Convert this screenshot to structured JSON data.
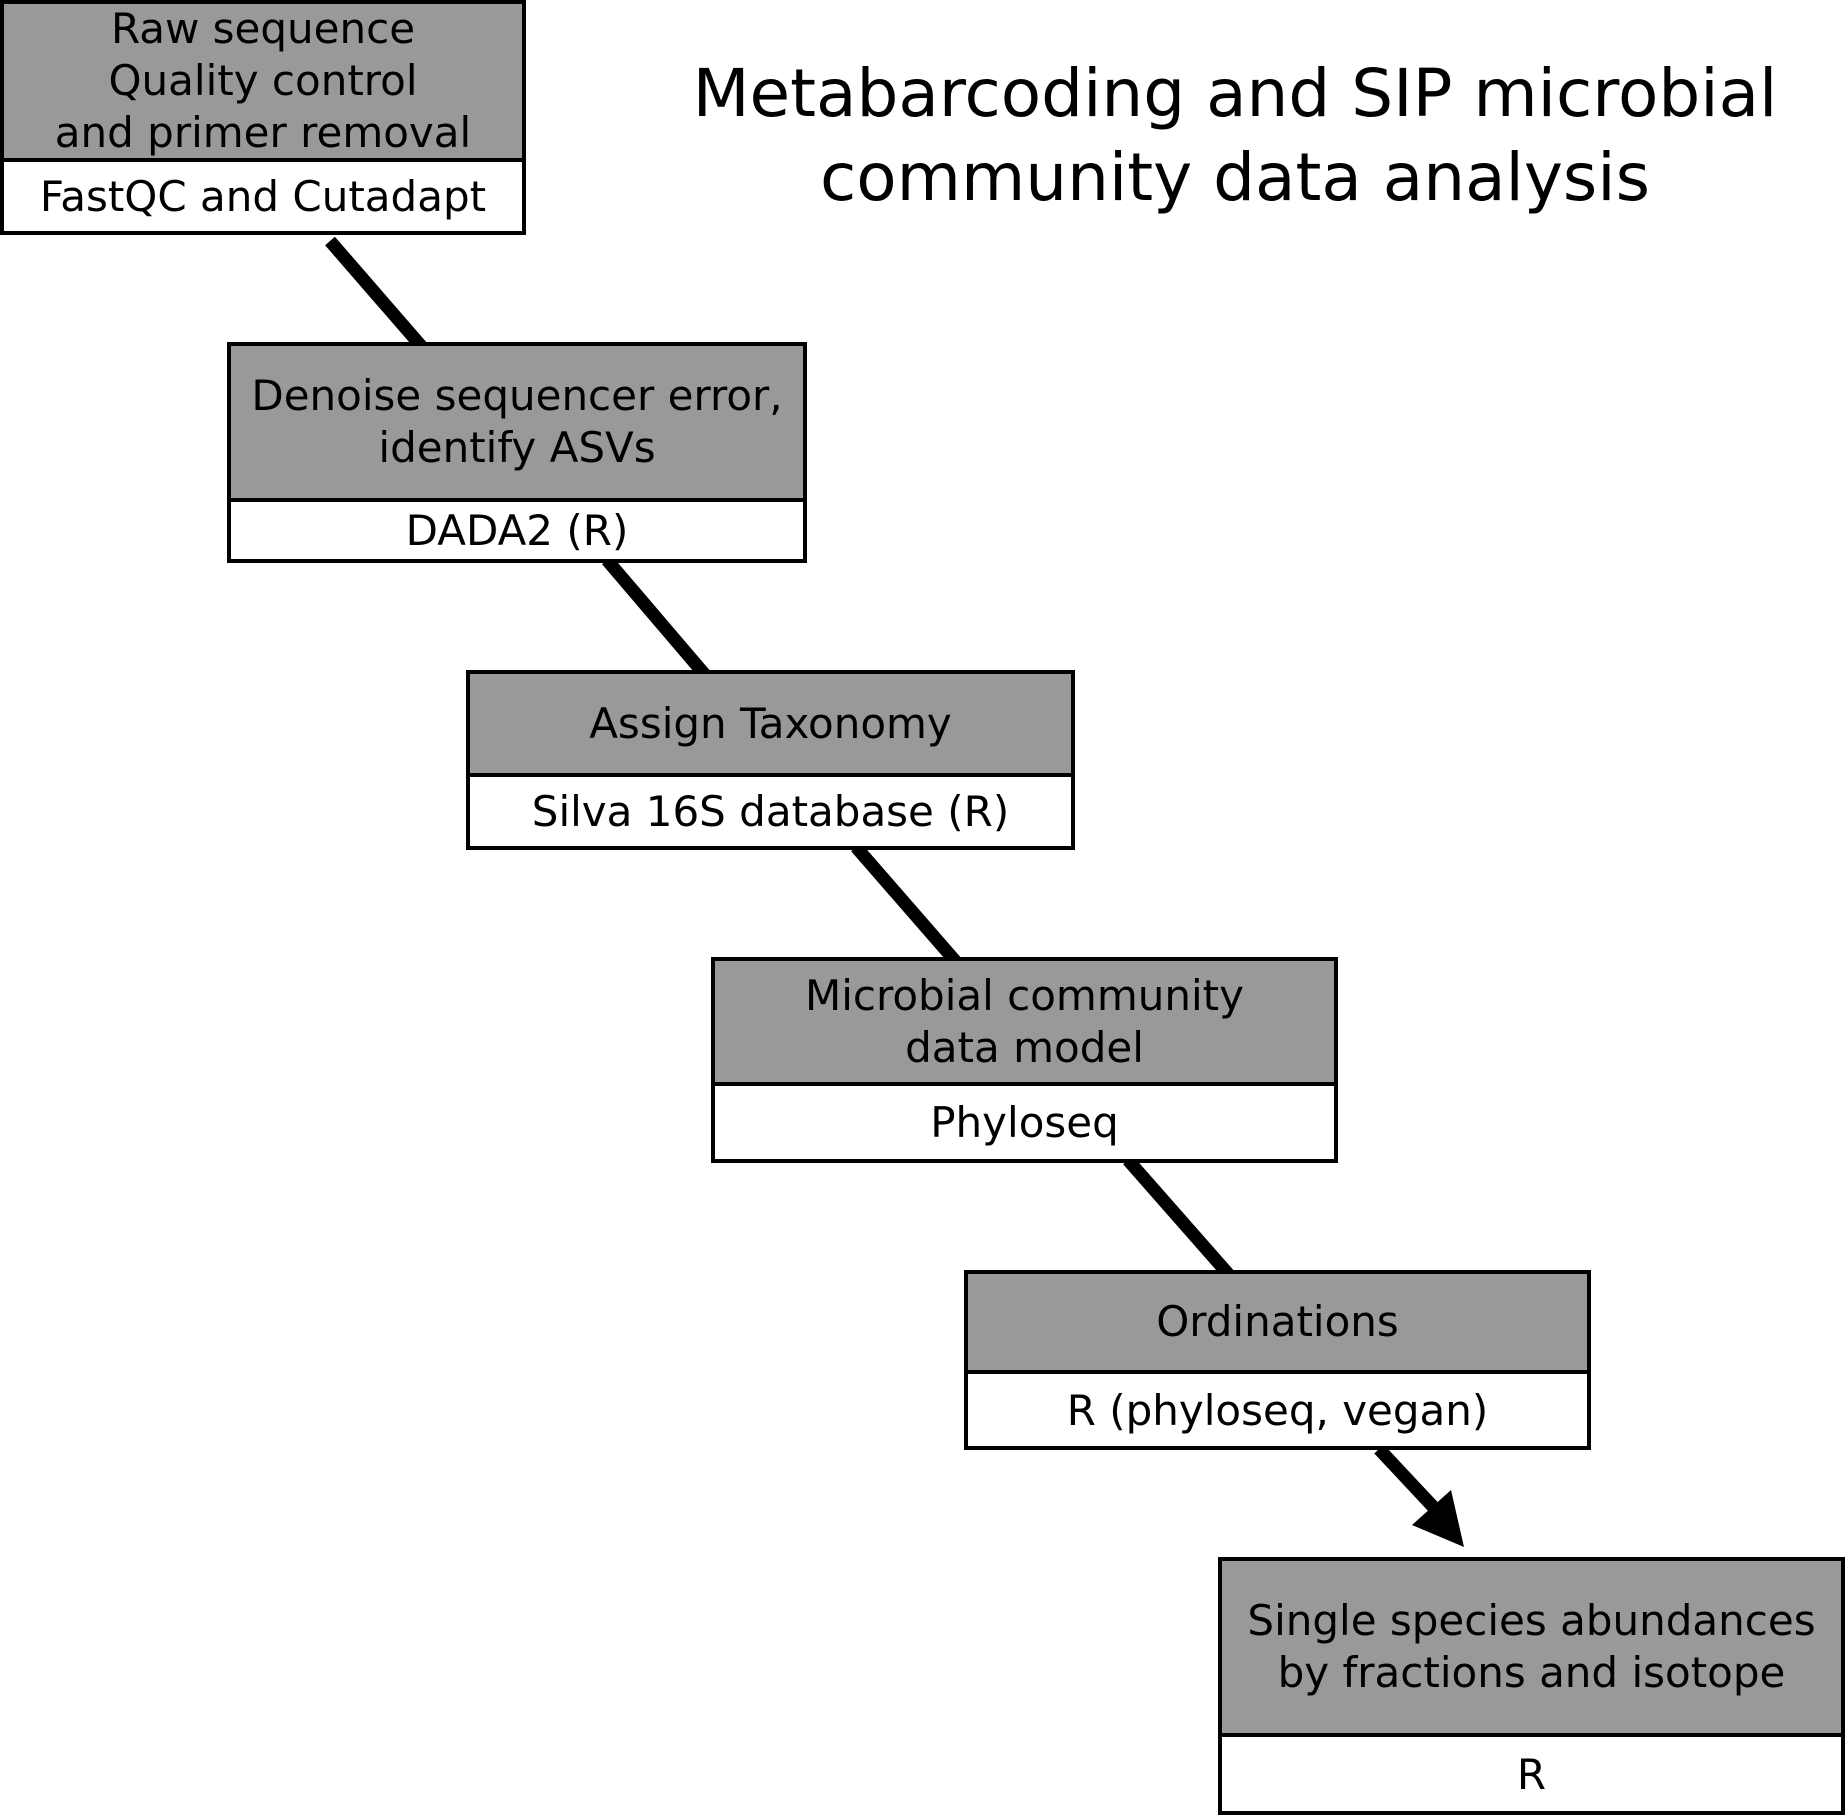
{
  "title": {
    "line1": "Metabarcoding and SIP microbial",
    "line2": "community data analysis"
  },
  "steps": [
    {
      "process": [
        "Raw sequence",
        "Quality control",
        "and primer removal"
      ],
      "tool": "FastQC and Cutadapt"
    },
    {
      "process": [
        "Denoise sequencer error,",
        "identify ASVs"
      ],
      "tool": "DADA2 (R)"
    },
    {
      "process": [
        "Assign Taxonomy"
      ],
      "tool": "Silva 16S database (R)"
    },
    {
      "process": [
        "Microbial community",
        "data model"
      ],
      "tool": "Phyloseq"
    },
    {
      "process": [
        "Ordinations"
      ],
      "tool": "R (phyloseq, vegan)"
    },
    {
      "process": [
        "Single species abundances",
        "by fractions and isotope"
      ],
      "tool": "R"
    }
  ],
  "colors": {
    "header_fill": "#999999",
    "tool_fill": "#ffffff",
    "stroke": "#000000"
  }
}
